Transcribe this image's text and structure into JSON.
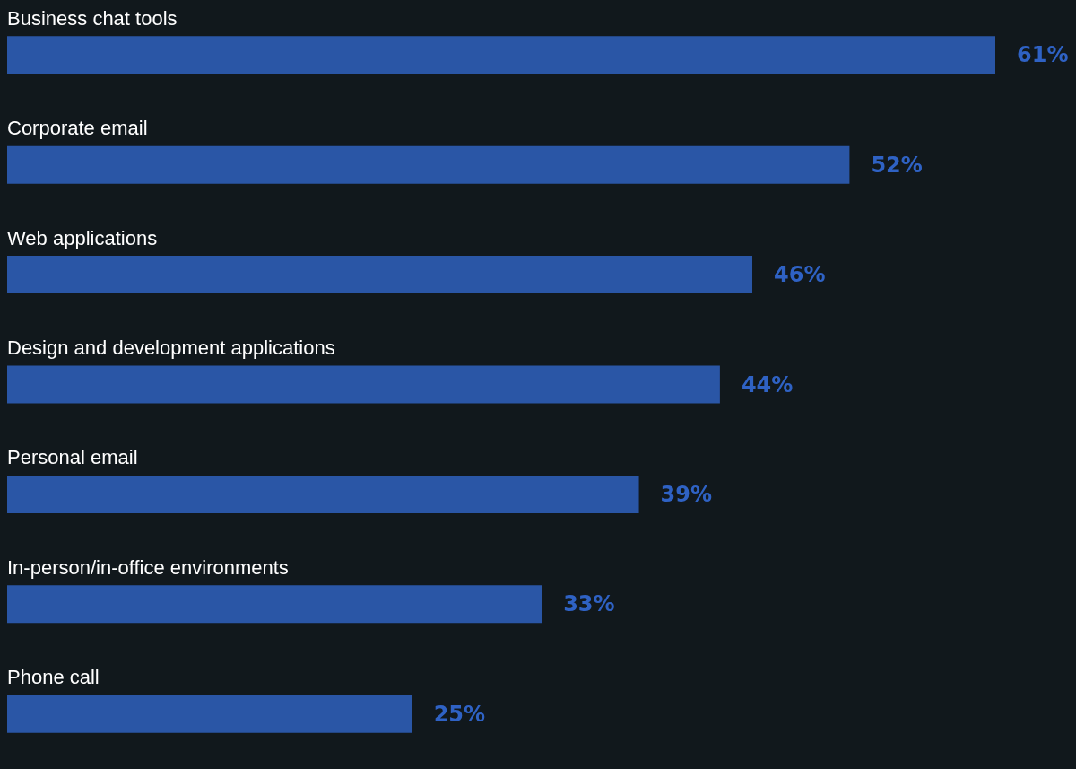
{
  "chart_data": {
    "type": "bar",
    "orientation": "horizontal",
    "categories": [
      "Business chat tools",
      "Corporate email",
      "Web applications",
      "Design and development applications",
      "Personal email",
      "In-person/in-office environments",
      "Phone call"
    ],
    "values": [
      61,
      52,
      46,
      44,
      39,
      33,
      25
    ],
    "value_labels": [
      "61%",
      "52%",
      "46%",
      "44%",
      "39%",
      "33%",
      "25%"
    ],
    "color": "#2a56a6"
  }
}
